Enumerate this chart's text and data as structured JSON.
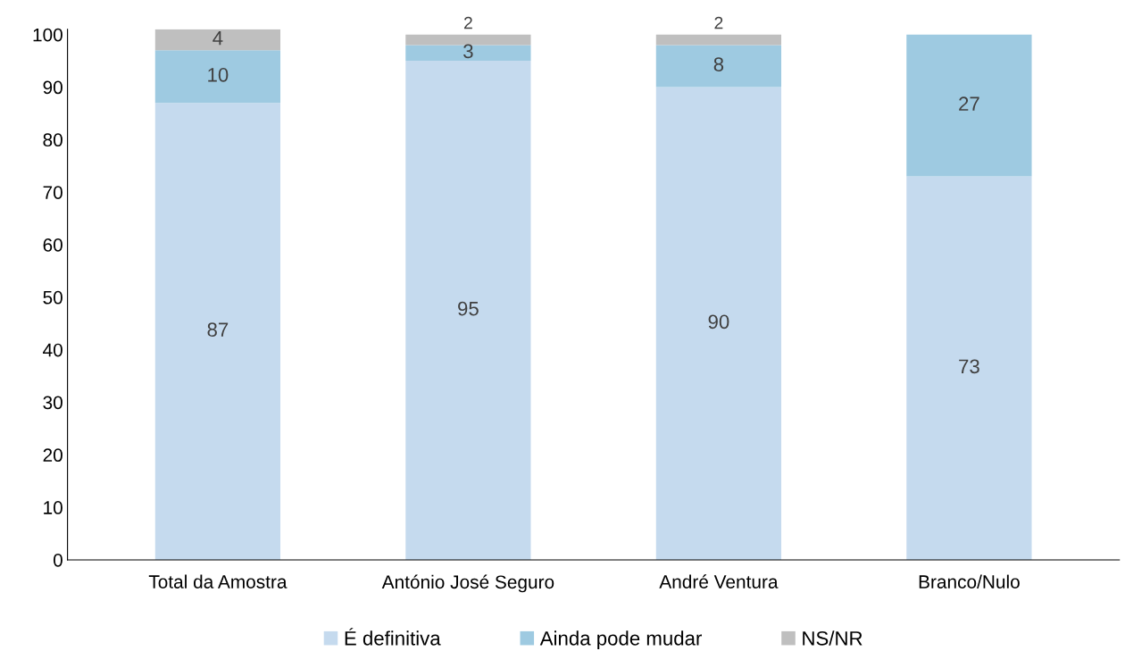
{
  "chart_data": {
    "type": "bar",
    "stacked": true,
    "categories": [
      "Total da Amostra",
      "António José Seguro",
      "André Ventura",
      "Branco/Nulo"
    ],
    "series": [
      {
        "name": "É definitiva",
        "color": "#c5daee",
        "values": [
          87,
          95,
          90,
          73
        ]
      },
      {
        "name": "Ainda pode mudar",
        "color": "#9ecae1",
        "values": [
          10,
          3,
          8,
          27
        ]
      },
      {
        "name": "NS/NR",
        "color": "#bfbfbf",
        "values": [
          4,
          2,
          2,
          null
        ]
      }
    ],
    "ylim": [
      0,
      101
    ],
    "yticks": [
      0,
      10,
      20,
      30,
      40,
      50,
      60,
      70,
      80,
      90,
      100
    ],
    "grid": false,
    "legend": "bottom",
    "data_labels": true
  }
}
